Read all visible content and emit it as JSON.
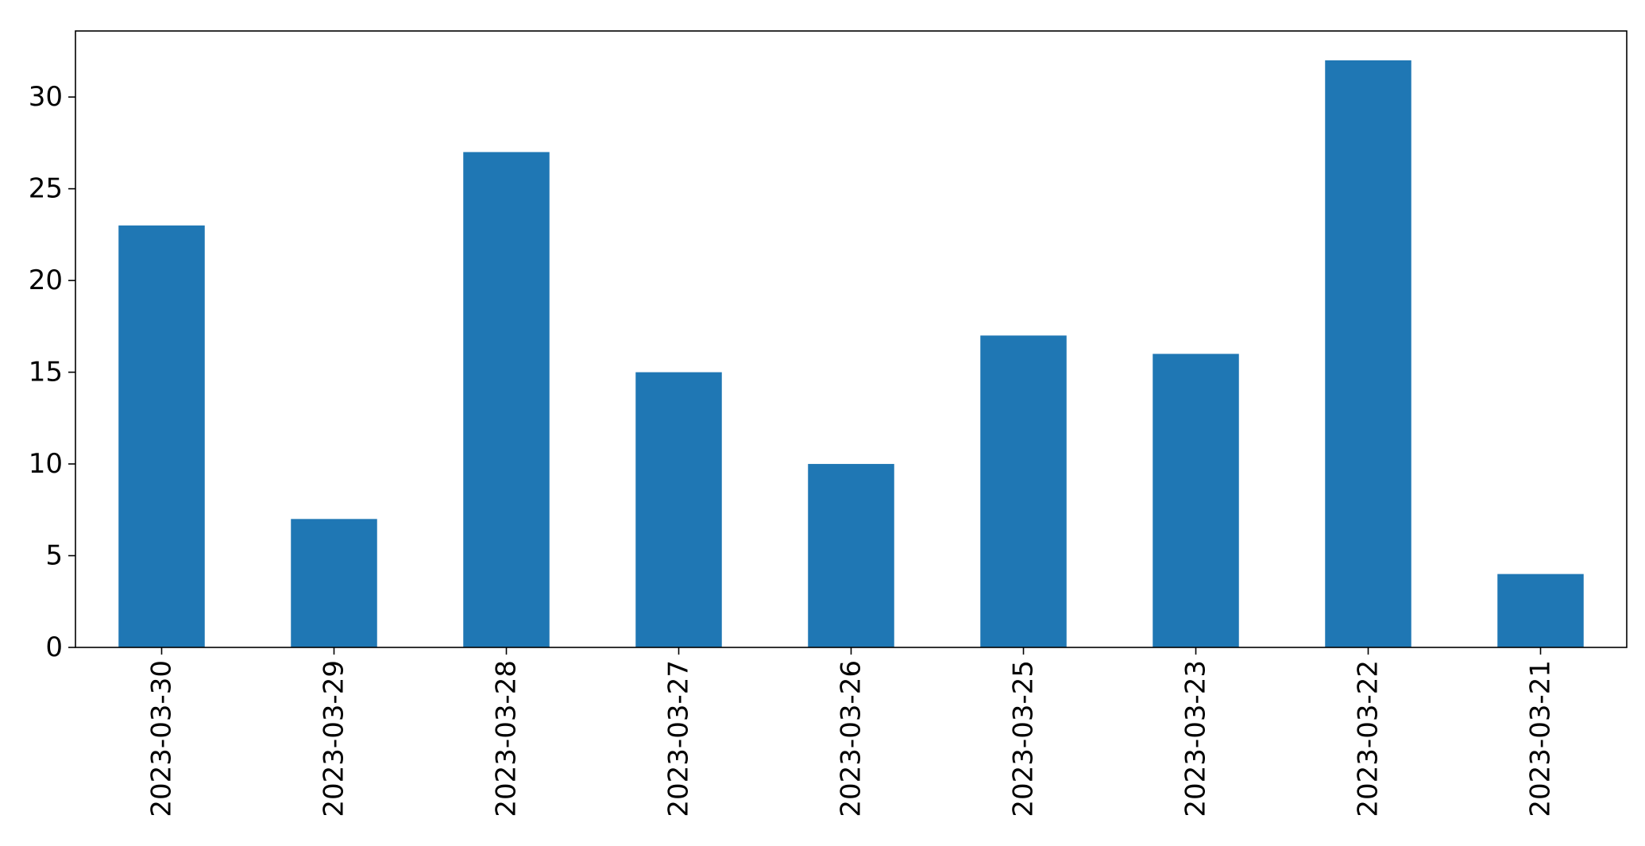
{
  "chart_data": {
    "type": "bar",
    "title": "",
    "xlabel": "",
    "ylabel": "",
    "categories": [
      "2023-03-30",
      "2023-03-29",
      "2023-03-28",
      "2023-03-27",
      "2023-03-26",
      "2023-03-25",
      "2023-03-23",
      "2023-03-22",
      "2023-03-21"
    ],
    "values": [
      23,
      7,
      27,
      15,
      10,
      17,
      16,
      32,
      4
    ],
    "ylim": [
      0,
      33.6
    ],
    "yticks": [
      0,
      5,
      10,
      15,
      20,
      25,
      30
    ],
    "grid": false,
    "legend": "none",
    "bar_color": "#1f77b4",
    "axis_color": "#000000",
    "background_color": "#ffffff"
  }
}
